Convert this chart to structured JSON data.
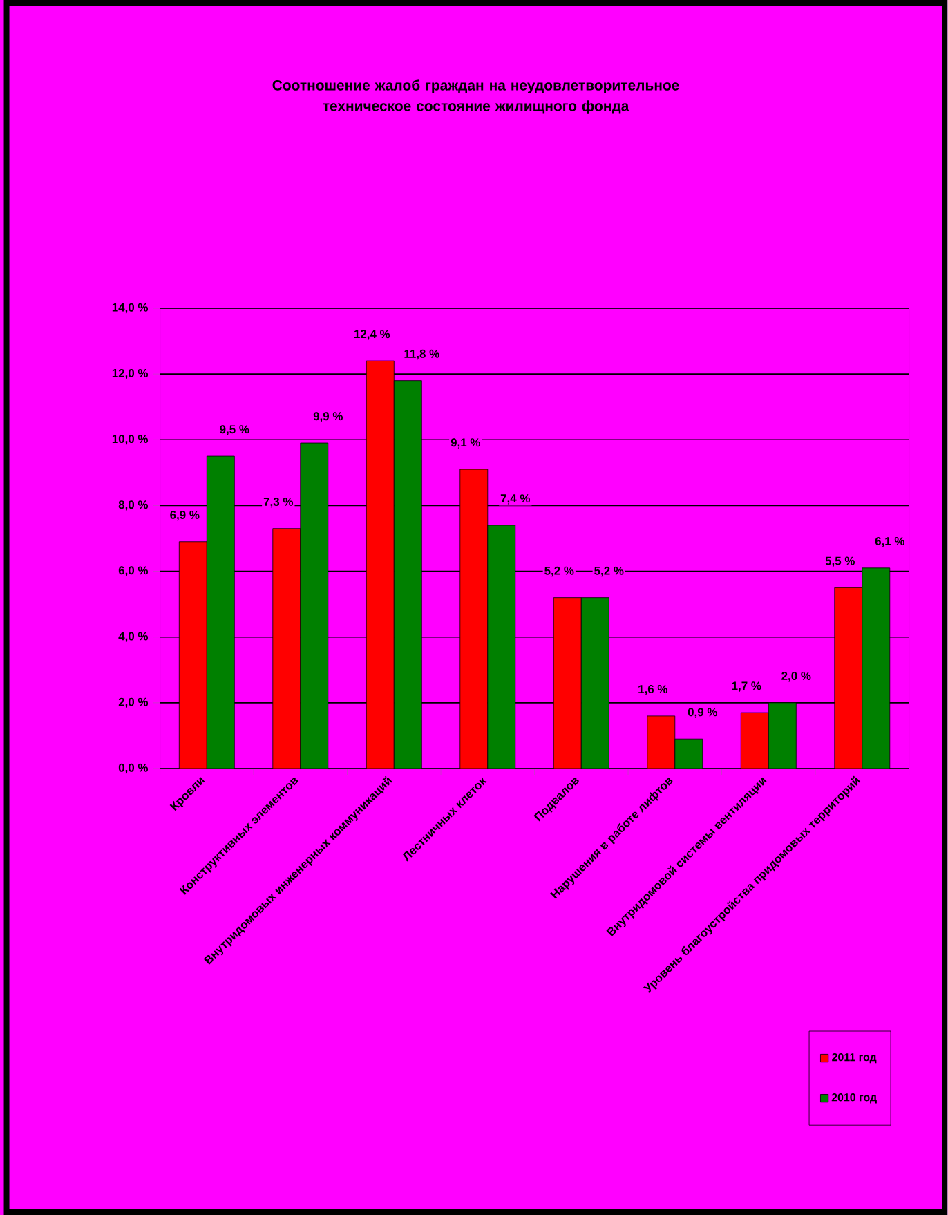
{
  "chart_data": {
    "type": "bar",
    "title": "Соотношение жалоб граждан на  неудовлетворительное техническое состояние жилищного фонда",
    "categories": [
      "Кровли",
      "Конструктивных элементов",
      "Внутридомовых инженерных коммуникаций",
      "Лестничных клеток",
      "Подвалов",
      "Нарушения в работе лифтов",
      "Внутридомовой системы вентиляции",
      "Уровень благоустройства придомовых территорий"
    ],
    "series": [
      {
        "name": "2011 год",
        "color": "#ff0000",
        "values": [
          6.9,
          7.3,
          12.4,
          9.1,
          5.2,
          1.6,
          1.7,
          5.5
        ],
        "value_labels": [
          "6,9 %",
          "7,3 %",
          "12,4 %",
          "9,1 %",
          "5,2 %",
          "1,6 %",
          "1,7 %",
          "5,5 %"
        ]
      },
      {
        "name": "2010 год",
        "color": "#008000",
        "values": [
          9.5,
          9.9,
          11.8,
          7.4,
          5.2,
          0.9,
          2.0,
          6.1
        ],
        "value_labels": [
          "9,5 %",
          "9,9 %",
          "11,8 %",
          "7,4 %",
          "5,2 %",
          "0,9 %",
          "2,0 %",
          "6,1 %"
        ]
      }
    ],
    "ylim": [
      0,
      14
    ],
    "yticks": [
      {
        "value": 0,
        "label": "0,0 %"
      },
      {
        "value": 2,
        "label": "2,0 %"
      },
      {
        "value": 4,
        "label": "4,0 %"
      },
      {
        "value": 6,
        "label": "6,0 %"
      },
      {
        "value": 8,
        "label": "8,0 %"
      },
      {
        "value": 10,
        "label": "10,0 %"
      },
      {
        "value": 12,
        "label": "12,0 %"
      },
      {
        "value": 14,
        "label": "14,0 %"
      }
    ],
    "grid": "y",
    "legend": "bottom right"
  }
}
